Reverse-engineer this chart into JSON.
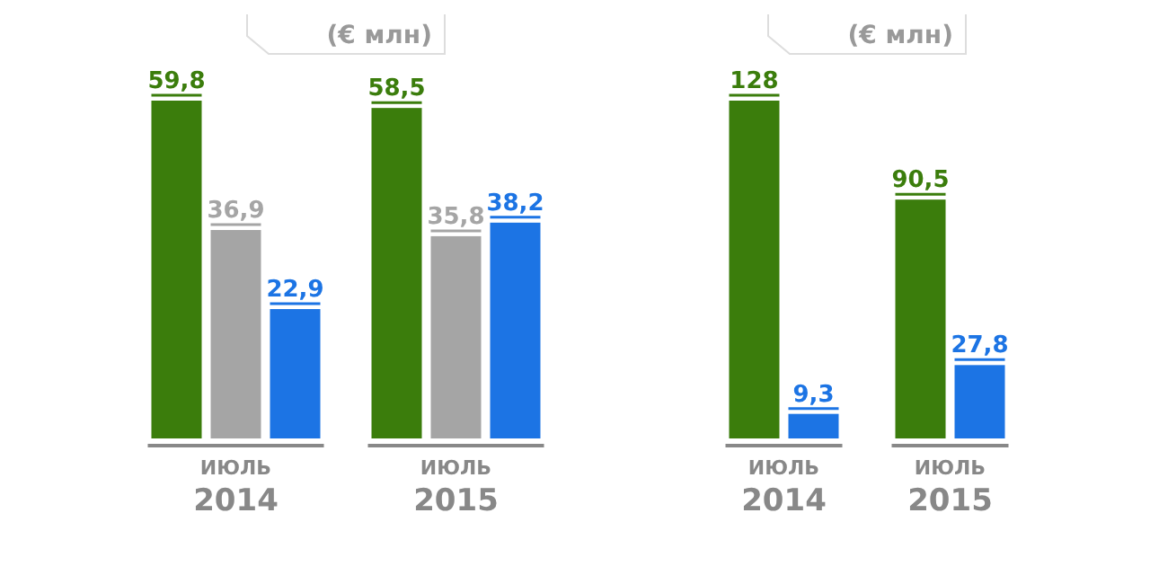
{
  "chart_data": [
    {
      "type": "bar",
      "title": "(€ млн)",
      "categories": [
        "ИЮЛЬ 2014",
        "ИЮЛЬ 2015"
      ],
      "series": [
        {
          "color": "#3b7d0c",
          "values": [
            59.8,
            58.5
          ],
          "value_labels": [
            "59,8",
            "58,5"
          ]
        },
        {
          "color": "#a5a5a5",
          "values": [
            36.9,
            35.8
          ],
          "value_labels": [
            "36,9",
            "35,8"
          ]
        },
        {
          "color": "#1c74e4",
          "values": [
            22.9,
            38.2
          ],
          "value_labels": [
            "22,9",
            "38,2"
          ]
        }
      ]
    },
    {
      "type": "bar",
      "title": "(€ млн)",
      "categories": [
        "ИЮЛЬ 2014",
        "ИЮЛЬ 2015"
      ],
      "series": [
        {
          "color": "#3b7d0c",
          "values": [
            128,
            90.5
          ],
          "value_labels": [
            "128",
            "90,5"
          ]
        },
        {
          "color": "#1c74e4",
          "values": [
            9.3,
            27.8
          ],
          "value_labels": [
            "9,3",
            "27,8"
          ]
        }
      ]
    }
  ]
}
